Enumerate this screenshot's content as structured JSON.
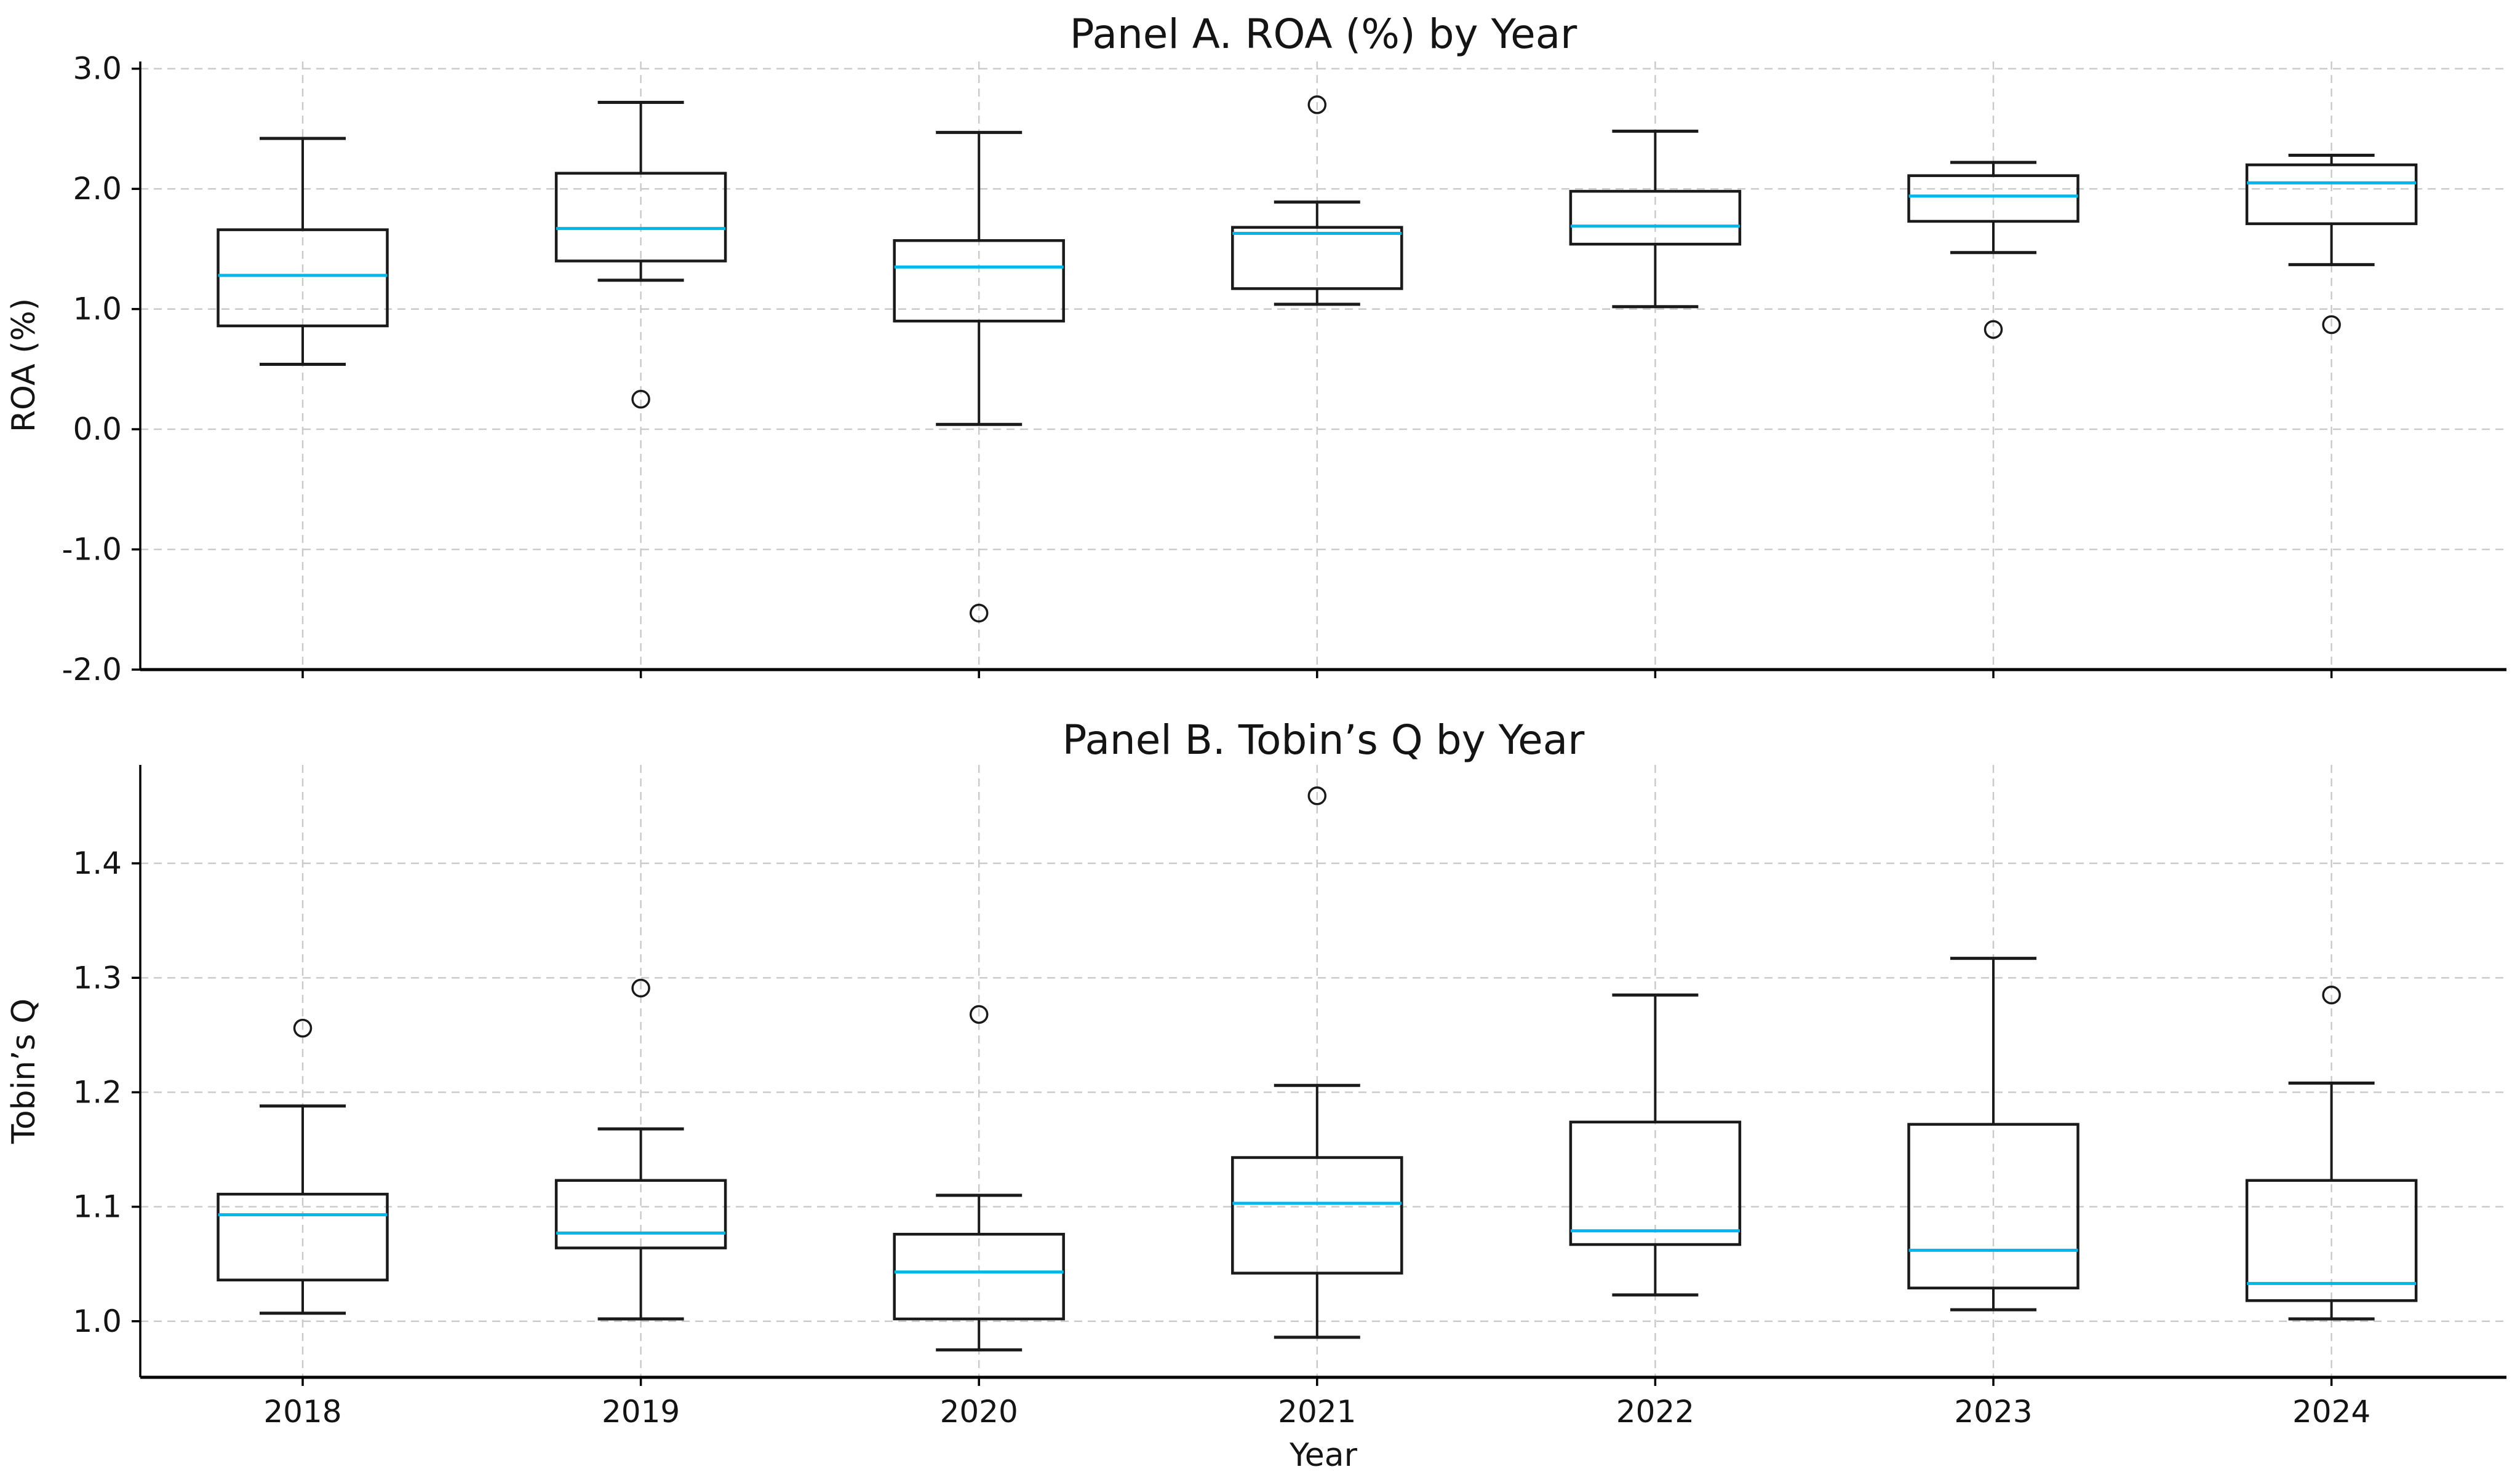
{
  "figure": {
    "background": "#ffffff",
    "median_color": "#00b7eb",
    "box_color": "#1a1a1a",
    "grid_color": "#c9c9c9",
    "text_color": "#141414"
  },
  "chart_data": [
    {
      "type": "boxplot",
      "title": "Panel A. ROA (%) by Year",
      "ylabel": "ROA (%)",
      "xlabel": "",
      "grid": true,
      "show_x_tick_labels": false,
      "categories": [
        "2018",
        "2019",
        "2020",
        "2021",
        "2022",
        "2023",
        "2024"
      ],
      "ylim": [
        -2.0,
        3.06
      ],
      "yticks": [
        {
          "v": 3.0,
          "label": "3.0"
        },
        {
          "v": 2.0,
          "label": "2.0"
        },
        {
          "v": 1.0,
          "label": "1.0"
        },
        {
          "v": 0.0,
          "label": "0.0"
        },
        {
          "v": -1.0,
          "label": "-1.0"
        },
        {
          "v": -2.0,
          "label": "-2.0"
        }
      ],
      "boxes": [
        {
          "category": "2018",
          "whislo": 0.54,
          "q1": 0.86,
          "med": 1.28,
          "q3": 1.66,
          "whishi": 2.42,
          "fliers": []
        },
        {
          "category": "2019",
          "whislo": 1.24,
          "q1": 1.4,
          "med": 1.67,
          "q3": 2.13,
          "whishi": 2.72,
          "fliers": [
            0.25
          ]
        },
        {
          "category": "2020",
          "whislo": 0.04,
          "q1": 0.9,
          "med": 1.35,
          "q3": 1.57,
          "whishi": 2.47,
          "fliers": [
            -1.53
          ]
        },
        {
          "category": "2021",
          "whislo": 1.04,
          "q1": 1.17,
          "med": 1.63,
          "q3": 1.68,
          "whishi": 1.89,
          "fliers": [
            2.7
          ]
        },
        {
          "category": "2022",
          "whislo": 1.02,
          "q1": 1.54,
          "med": 1.69,
          "q3": 1.98,
          "whishi": 2.48,
          "fliers": []
        },
        {
          "category": "2023",
          "whislo": 1.47,
          "q1": 1.73,
          "med": 1.94,
          "q3": 2.11,
          "whishi": 2.22,
          "fliers": [
            0.83
          ]
        },
        {
          "category": "2024",
          "whislo": 1.37,
          "q1": 1.71,
          "med": 2.05,
          "q3": 2.2,
          "whishi": 2.28,
          "fliers": [
            0.87
          ]
        }
      ]
    },
    {
      "type": "boxplot",
      "title": "Panel B. Tobin’s Q by Year",
      "ylabel": "Tobin’s Q",
      "xlabel": "Year",
      "grid": true,
      "show_x_tick_labels": true,
      "categories": [
        "2018",
        "2019",
        "2020",
        "2021",
        "2022",
        "2023",
        "2024"
      ],
      "ylim": [
        0.951,
        1.486
      ],
      "yticks": [
        {
          "v": 1.4,
          "label": "1.4"
        },
        {
          "v": 1.3,
          "label": "1.3"
        },
        {
          "v": 1.2,
          "label": "1.2"
        },
        {
          "v": 1.1,
          "label": "1.1"
        },
        {
          "v": 1.0,
          "label": "1.0"
        }
      ],
      "boxes": [
        {
          "category": "2018",
          "whislo": 1.007,
          "q1": 1.036,
          "med": 1.093,
          "q3": 1.111,
          "whishi": 1.188,
          "fliers": [
            1.256
          ]
        },
        {
          "category": "2019",
          "whislo": 1.002,
          "q1": 1.064,
          "med": 1.077,
          "q3": 1.123,
          "whishi": 1.168,
          "fliers": [
            1.291
          ]
        },
        {
          "category": "2020",
          "whislo": 0.975,
          "q1": 1.002,
          "med": 1.043,
          "q3": 1.076,
          "whishi": 1.11,
          "fliers": [
            1.268
          ]
        },
        {
          "category": "2021",
          "whislo": 0.986,
          "q1": 1.042,
          "med": 1.103,
          "q3": 1.143,
          "whishi": 1.206,
          "fliers": [
            1.459
          ]
        },
        {
          "category": "2022",
          "whislo": 1.023,
          "q1": 1.067,
          "med": 1.079,
          "q3": 1.174,
          "whishi": 1.285,
          "fliers": []
        },
        {
          "category": "2023",
          "whislo": 1.01,
          "q1": 1.029,
          "med": 1.062,
          "q3": 1.172,
          "whishi": 1.317,
          "fliers": []
        },
        {
          "category": "2024",
          "whislo": 1.002,
          "q1": 1.018,
          "med": 1.033,
          "q3": 1.123,
          "whishi": 1.208,
          "fliers": [
            1.285
          ]
        }
      ]
    }
  ]
}
